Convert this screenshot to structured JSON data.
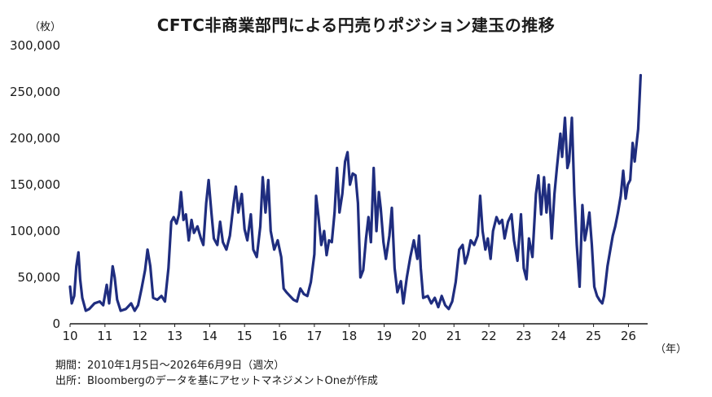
{
  "chart_data": {
    "type": "line",
    "title": "CFTC非商業部門による円売りポジション建玉の推移",
    "ylabel": "（枚）",
    "xlabel": "（年）",
    "ylim": [
      0,
      300000
    ],
    "xlim": [
      2010.0,
      2026.55
    ],
    "yticks": [
      0,
      50000,
      100000,
      150000,
      200000,
      250000,
      300000
    ],
    "ytick_labels": [
      "0",
      "50,000",
      "100,000",
      "150,000",
      "200,000",
      "250,000",
      "300,000"
    ],
    "xticks": [
      2010,
      2011,
      2012,
      2013,
      2014,
      2015,
      2016,
      2017,
      2018,
      2019,
      2020,
      2021,
      2022,
      2023,
      2024,
      2025,
      2026
    ],
    "xtick_labels": [
      "10",
      "11",
      "12",
      "13",
      "14",
      "15",
      "16",
      "17",
      "18",
      "19",
      "20",
      "21",
      "22",
      "23",
      "24",
      "25",
      "26"
    ],
    "line_color": "#1f2d7f",
    "grid": false,
    "series": [
      {
        "points": [
          [
            2010.0,
            40000
          ],
          [
            2010.05,
            22000
          ],
          [
            2010.12,
            30000
          ],
          [
            2010.18,
            62000
          ],
          [
            2010.24,
            77000
          ],
          [
            2010.29,
            48000
          ],
          [
            2010.35,
            28000
          ],
          [
            2010.45,
            14000
          ],
          [
            2010.55,
            16000
          ],
          [
            2010.7,
            22000
          ],
          [
            2010.85,
            24000
          ],
          [
            2010.95,
            20000
          ],
          [
            2011.05,
            42000
          ],
          [
            2011.12,
            22000
          ],
          [
            2011.22,
            62000
          ],
          [
            2011.28,
            50000
          ],
          [
            2011.35,
            26000
          ],
          [
            2011.45,
            14000
          ],
          [
            2011.6,
            16000
          ],
          [
            2011.75,
            22000
          ],
          [
            2011.85,
            14000
          ],
          [
            2011.95,
            20000
          ],
          [
            2012.05,
            38000
          ],
          [
            2012.15,
            58000
          ],
          [
            2012.22,
            80000
          ],
          [
            2012.3,
            62000
          ],
          [
            2012.38,
            28000
          ],
          [
            2012.5,
            26000
          ],
          [
            2012.62,
            30000
          ],
          [
            2012.72,
            24000
          ],
          [
            2012.82,
            60000
          ],
          [
            2012.9,
            110000
          ],
          [
            2012.97,
            115000
          ],
          [
            2013.05,
            108000
          ],
          [
            2013.12,
            118000
          ],
          [
            2013.18,
            142000
          ],
          [
            2013.25,
            112000
          ],
          [
            2013.32,
            118000
          ],
          [
            2013.4,
            90000
          ],
          [
            2013.48,
            112000
          ],
          [
            2013.55,
            98000
          ],
          [
            2013.65,
            105000
          ],
          [
            2013.75,
            92000
          ],
          [
            2013.82,
            85000
          ],
          [
            2013.9,
            130000
          ],
          [
            2013.97,
            155000
          ],
          [
            2014.05,
            120000
          ],
          [
            2014.12,
            92000
          ],
          [
            2014.22,
            85000
          ],
          [
            2014.3,
            110000
          ],
          [
            2014.38,
            88000
          ],
          [
            2014.48,
            80000
          ],
          [
            2014.58,
            95000
          ],
          [
            2014.68,
            128000
          ],
          [
            2014.75,
            148000
          ],
          [
            2014.82,
            120000
          ],
          [
            2014.92,
            140000
          ],
          [
            2015.0,
            102000
          ],
          [
            2015.08,
            90000
          ],
          [
            2015.18,
            118000
          ],
          [
            2015.25,
            80000
          ],
          [
            2015.35,
            72000
          ],
          [
            2015.45,
            105000
          ],
          [
            2015.52,
            158000
          ],
          [
            2015.6,
            120000
          ],
          [
            2015.68,
            155000
          ],
          [
            2015.75,
            100000
          ],
          [
            2015.85,
            80000
          ],
          [
            2015.95,
            90000
          ],
          [
            2016.05,
            72000
          ],
          [
            2016.12,
            38000
          ],
          [
            2016.2,
            34000
          ],
          [
            2016.3,
            30000
          ],
          [
            2016.4,
            26000
          ],
          [
            2016.5,
            24000
          ],
          [
            2016.6,
            38000
          ],
          [
            2016.7,
            32000
          ],
          [
            2016.8,
            30000
          ],
          [
            2016.9,
            45000
          ],
          [
            2017.0,
            75000
          ],
          [
            2017.05,
            138000
          ],
          [
            2017.12,
            115000
          ],
          [
            2017.2,
            85000
          ],
          [
            2017.28,
            100000
          ],
          [
            2017.35,
            74000
          ],
          [
            2017.42,
            90000
          ],
          [
            2017.5,
            88000
          ],
          [
            2017.58,
            120000
          ],
          [
            2017.65,
            168000
          ],
          [
            2017.72,
            120000
          ],
          [
            2017.8,
            140000
          ],
          [
            2017.88,
            175000
          ],
          [
            2017.95,
            185000
          ],
          [
            2018.02,
            150000
          ],
          [
            2018.1,
            162000
          ],
          [
            2018.18,
            160000
          ],
          [
            2018.25,
            130000
          ],
          [
            2018.32,
            50000
          ],
          [
            2018.4,
            58000
          ],
          [
            2018.48,
            92000
          ],
          [
            2018.55,
            115000
          ],
          [
            2018.62,
            88000
          ],
          [
            2018.7,
            168000
          ],
          [
            2018.78,
            100000
          ],
          [
            2018.85,
            142000
          ],
          [
            2018.9,
            125000
          ],
          [
            2018.98,
            88000
          ],
          [
            2019.05,
            70000
          ],
          [
            2019.15,
            95000
          ],
          [
            2019.22,
            125000
          ],
          [
            2019.3,
            60000
          ],
          [
            2019.38,
            34000
          ],
          [
            2019.48,
            46000
          ],
          [
            2019.55,
            22000
          ],
          [
            2019.65,
            50000
          ],
          [
            2019.75,
            72000
          ],
          [
            2019.85,
            90000
          ],
          [
            2019.95,
            70000
          ],
          [
            2020.0,
            95000
          ],
          [
            2020.05,
            60000
          ],
          [
            2020.12,
            28000
          ],
          [
            2020.25,
            30000
          ],
          [
            2020.35,
            22000
          ],
          [
            2020.45,
            28000
          ],
          [
            2020.55,
            18000
          ],
          [
            2020.65,
            30000
          ],
          [
            2020.75,
            20000
          ],
          [
            2020.85,
            16000
          ],
          [
            2020.95,
            24000
          ],
          [
            2021.05,
            45000
          ],
          [
            2021.15,
            80000
          ],
          [
            2021.25,
            85000
          ],
          [
            2021.32,
            65000
          ],
          [
            2021.4,
            75000
          ],
          [
            2021.48,
            90000
          ],
          [
            2021.58,
            85000
          ],
          [
            2021.68,
            95000
          ],
          [
            2021.75,
            138000
          ],
          [
            2021.82,
            100000
          ],
          [
            2021.9,
            80000
          ],
          [
            2021.97,
            92000
          ],
          [
            2022.05,
            70000
          ],
          [
            2022.12,
            100000
          ],
          [
            2022.22,
            115000
          ],
          [
            2022.3,
            108000
          ],
          [
            2022.38,
            112000
          ],
          [
            2022.45,
            92000
          ],
          [
            2022.55,
            110000
          ],
          [
            2022.65,
            118000
          ],
          [
            2022.72,
            90000
          ],
          [
            2022.82,
            68000
          ],
          [
            2022.92,
            118000
          ],
          [
            2023.0,
            60000
          ],
          [
            2023.08,
            48000
          ],
          [
            2023.15,
            92000
          ],
          [
            2023.25,
            72000
          ],
          [
            2023.35,
            140000
          ],
          [
            2023.42,
            160000
          ],
          [
            2023.5,
            118000
          ],
          [
            2023.58,
            158000
          ],
          [
            2023.65,
            120000
          ],
          [
            2023.72,
            150000
          ],
          [
            2023.8,
            92000
          ],
          [
            2023.88,
            140000
          ],
          [
            2023.95,
            168000
          ],
          [
            2024.05,
            205000
          ],
          [
            2024.1,
            180000
          ],
          [
            2024.18,
            222000
          ],
          [
            2024.25,
            168000
          ],
          [
            2024.3,
            175000
          ],
          [
            2024.38,
            222000
          ],
          [
            2024.45,
            140000
          ],
          [
            2024.52,
            85000
          ],
          [
            2024.6,
            40000
          ],
          [
            2024.68,
            128000
          ],
          [
            2024.75,
            90000
          ],
          [
            2024.8,
            100000
          ],
          [
            2024.88,
            120000
          ],
          [
            2024.95,
            85000
          ],
          [
            2025.02,
            40000
          ],
          [
            2025.1,
            30000
          ],
          [
            2025.18,
            25000
          ],
          [
            2025.25,
            22000
          ],
          [
            2025.3,
            30000
          ],
          [
            2025.4,
            62000
          ],
          [
            2025.48,
            80000
          ],
          [
            2025.55,
            95000
          ],
          [
            2025.62,
            105000
          ],
          [
            2025.7,
            120000
          ],
          [
            2025.78,
            138000
          ],
          [
            2025.85,
            165000
          ],
          [
            2025.92,
            135000
          ],
          [
            2025.98,
            150000
          ],
          [
            2026.05,
            155000
          ],
          [
            2026.12,
            195000
          ],
          [
            2026.18,
            175000
          ],
          [
            2026.22,
            190000
          ],
          [
            2026.28,
            210000
          ],
          [
            2026.35,
            268000
          ]
        ]
      }
    ]
  },
  "unit_y": "（枚）",
  "unit_x": "（年）",
  "footnotes": {
    "period": "期間：2010年1月5日～2026年6月9日（週次）",
    "source": "出所：Bloombergのデータを基にアセットマネジメントOneが作成"
  }
}
